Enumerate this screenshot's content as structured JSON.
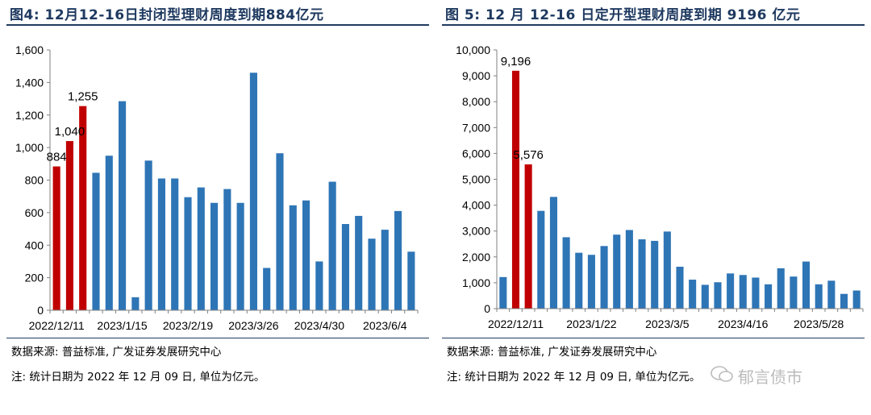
{
  "charts": [
    {
      "title": "图4:  12月12-16日封闭型理财周度到期884亿元",
      "source": "数据来源:  普益标准,  广发证券发展研究中心",
      "note": "注:  统计日期为 2022 年 12 月 09 日,  单位为亿元。"
    },
    {
      "title": "图 5:  12 月 12-16 日定开型理财周度到期 9196 亿元",
      "source": "数据来源:  普益标准,  广发证券发展研究中心",
      "note": "注:  统计日期为 2022 年 12 月 09 日,  单位为亿元。"
    }
  ],
  "watermark": "郁言债市",
  "colors": {
    "highlight": "#c00000",
    "bar": "#2e75b6",
    "title": "#1f3a60"
  },
  "chart_data": [
    {
      "type": "bar",
      "title": "图4:  12月12-16日封闭型理财周度到期884亿元",
      "xlabel": "",
      "ylabel": "",
      "ylim": [
        0,
        1600
      ],
      "yticks": [
        0,
        200,
        400,
        600,
        800,
        1000,
        1200,
        1400,
        1600
      ],
      "ytick_labels": [
        "0",
        "200",
        "400",
        "600",
        "800",
        "1,000",
        "1,200",
        "1,400",
        "1,600"
      ],
      "xtick_labels": [
        {
          "label": "2022/12/11",
          "index": 0
        },
        {
          "label": "2023/1/15",
          "index": 5
        },
        {
          "label": "2023/2/19",
          "index": 10
        },
        {
          "label": "2023/3/26",
          "index": 15
        },
        {
          "label": "2023/4/30",
          "index": 20
        },
        {
          "label": "2023/6/4",
          "index": 25
        }
      ],
      "values": [
        884,
        1040,
        1255,
        845,
        950,
        1285,
        80,
        920,
        810,
        810,
        695,
        755,
        660,
        745,
        660,
        1460,
        260,
        965,
        645,
        675,
        300,
        790,
        530,
        580,
        440,
        495,
        610,
        360
      ],
      "highlight_count": 3,
      "data_labels": [
        {
          "index": 0,
          "text": "884"
        },
        {
          "index": 1,
          "text": "1,040"
        },
        {
          "index": 2,
          "text": "1,255"
        }
      ]
    },
    {
      "type": "bar",
      "title": "图 5:  12 月 12-16 日定开型理财周度到期 9196 亿元",
      "xlabel": "",
      "ylabel": "",
      "ylim": [
        0,
        10000
      ],
      "yticks": [
        0,
        1000,
        2000,
        3000,
        4000,
        5000,
        6000,
        7000,
        8000,
        9000,
        10000
      ],
      "ytick_labels": [
        "0",
        "1,000",
        "2,000",
        "3,000",
        "4,000",
        "5,000",
        "6,000",
        "7,000",
        "8,000",
        "9,000",
        "10,000"
      ],
      "xtick_labels": [
        {
          "label": "2022/12/11",
          "index": 1
        },
        {
          "label": "2023/1/22",
          "index": 7
        },
        {
          "label": "2023/3/5",
          "index": 13
        },
        {
          "label": "2023/4/16",
          "index": 19
        },
        {
          "label": "2023/5/28",
          "index": 25
        }
      ],
      "values": [
        1220,
        9196,
        5576,
        3780,
        4320,
        2760,
        2160,
        2080,
        2420,
        2860,
        3040,
        2680,
        2620,
        2980,
        1620,
        1120,
        920,
        1020,
        1360,
        1300,
        1200,
        940,
        1560,
        1240,
        1820,
        940,
        1080,
        570,
        700
      ],
      "highlight_indices": [
        1,
        2
      ],
      "data_labels": [
        {
          "index": 1,
          "text": "9,196"
        },
        {
          "index": 2,
          "text": "5,576"
        }
      ]
    }
  ]
}
